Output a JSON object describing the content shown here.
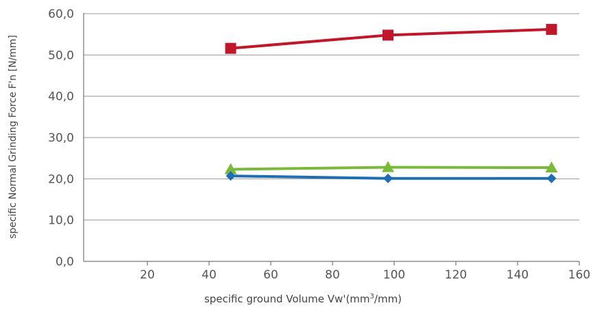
{
  "chart_data": {
    "type": "line",
    "xlabel": "specific ground Volume Vw'(mm3/mm)",
    "xlabel_parts": {
      "prefix": "specific ground Volume Vw'(mm",
      "superscript": "3",
      "suffix": "/mm)"
    },
    "ylabel": "specific Normal Grinding Force F'n [N/mm]",
    "xlim": [
      0,
      160
    ],
    "ylim": [
      0,
      60
    ],
    "x_ticks": [
      20,
      40,
      60,
      80,
      100,
      120,
      140,
      160
    ],
    "x_tick_labels": [
      "20",
      "40",
      "60",
      "80",
      "100",
      "120",
      "140",
      "160"
    ],
    "y_ticks": [
      0,
      10,
      20,
      30,
      40,
      50,
      60
    ],
    "y_tick_labels": [
      "0,0",
      "10,0",
      "20,0",
      "30,0",
      "40,0",
      "50,0",
      "60,0"
    ],
    "grid": true,
    "legend": "none",
    "series": [
      {
        "color": "#c0182a",
        "marker": "square",
        "x": [
          47,
          98,
          151
        ],
        "y": [
          51.6,
          54.8,
          56.2
        ]
      },
      {
        "color": "#7ab93a",
        "marker": "triangle",
        "x": [
          47,
          98,
          151
        ],
        "y": [
          22.3,
          22.8,
          22.7
        ]
      },
      {
        "color": "#1f6db3",
        "marker": "diamond",
        "x": [
          47,
          98,
          151
        ],
        "y": [
          20.7,
          20.1,
          20.1
        ]
      }
    ]
  }
}
